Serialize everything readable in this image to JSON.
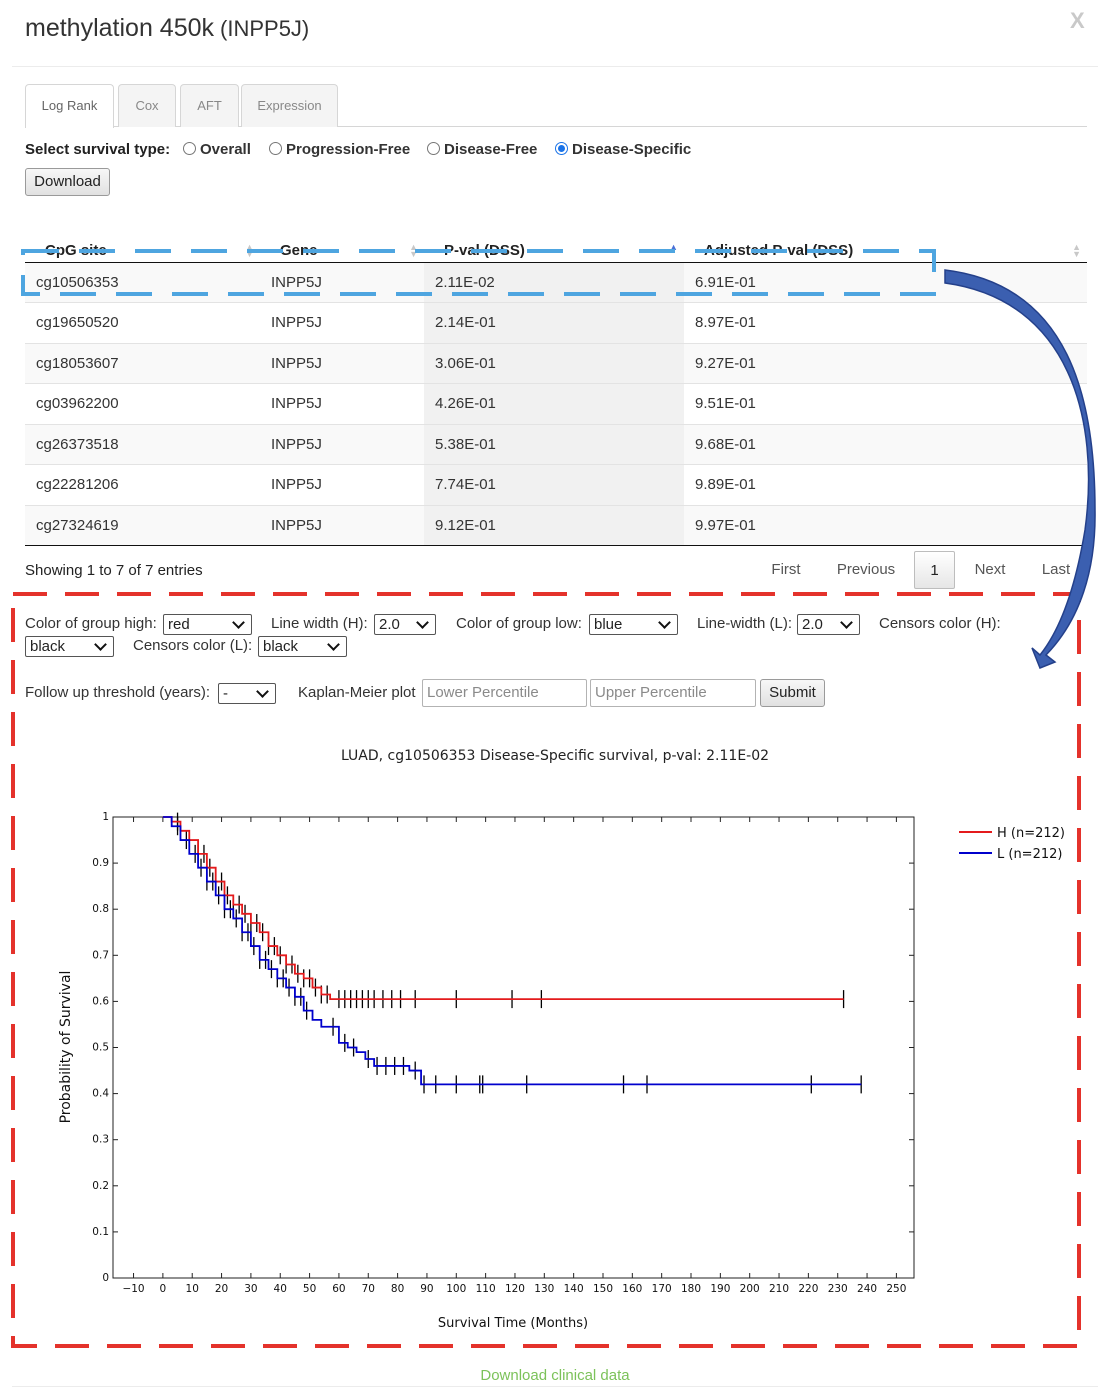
{
  "modal": {
    "title": "methylation 450k",
    "gene_label": "(INPP5J)",
    "close": "X"
  },
  "tabs": [
    {
      "label": "Log Rank",
      "active": true
    },
    {
      "label": "Cox",
      "active": false
    },
    {
      "label": "AFT",
      "active": false
    },
    {
      "label": "Expression",
      "active": false
    }
  ],
  "survival_type": {
    "label": "Select survival type:",
    "options": [
      "Overall",
      "Progression-Free",
      "Disease-Free",
      "Disease-Specific"
    ],
    "selected": "Disease-Specific"
  },
  "download_button": "Download",
  "table": {
    "columns": [
      "CpG site",
      "Gene",
      "P-val (DSS)",
      "Adjusted P-val (DSS)"
    ],
    "sorted_column": "P-val (DSS)",
    "rows": [
      [
        "cg10506353",
        "INPP5J",
        "2.11E-02",
        "6.91E-01"
      ],
      [
        "cg19650520",
        "INPP5J",
        "2.14E-01",
        "8.97E-01"
      ],
      [
        "cg18053607",
        "INPP5J",
        "3.06E-01",
        "9.27E-01"
      ],
      [
        "cg03962200",
        "INPP5J",
        "4.26E-01",
        "9.51E-01"
      ],
      [
        "cg26373518",
        "INPP5J",
        "5.38E-01",
        "9.68E-01"
      ],
      [
        "cg22281206",
        "INPP5J",
        "7.74E-01",
        "9.89E-01"
      ],
      [
        "cg27324619",
        "INPP5J",
        "9.12E-01",
        "9.97E-01"
      ]
    ],
    "info": "Showing 1 to 7 of 7 entries",
    "pagination": {
      "first": "First",
      "previous": "Previous",
      "page": "1",
      "next": "Next",
      "last": "Last"
    }
  },
  "plot_controls": {
    "color_high_label": "Color of group high:",
    "color_high": "red",
    "lw_h_label": "Line width (H):",
    "lw_h": "2.0",
    "color_low_label": "Color of group low:",
    "color_low": "blue",
    "lw_l_label": "Line-width (L):",
    "lw_l": "2.0",
    "censor_h_label": "Censors color (H):",
    "censor_h": "black",
    "censor_l_label": "Censors color (L):",
    "censor_l": "black",
    "followup_label": "Follow up threshold (years):",
    "followup": "-",
    "km_label": "Kaplan-Meier plot",
    "lower_placeholder": "Lower Percentile",
    "upper_placeholder": "Upper Percentile",
    "submit": "Submit"
  },
  "chart_data": {
    "type": "line",
    "title": "LUAD, cg10506353 Disease-Specific survival, p-val: 2.11E-02",
    "xlabel": "Survival Time (Months)",
    "ylabel": "Probability of Survival",
    "xlim": [
      -17,
      256
    ],
    "ylim": [
      0,
      1
    ],
    "xticks": [
      -10,
      0,
      10,
      20,
      30,
      40,
      50,
      60,
      70,
      80,
      90,
      100,
      110,
      120,
      130,
      140,
      150,
      160,
      170,
      180,
      190,
      200,
      210,
      220,
      230,
      240,
      250
    ],
    "yticks": [
      0,
      0.1,
      0.2,
      0.3,
      0.4,
      0.5,
      0.6,
      0.7,
      0.8,
      0.9,
      1
    ],
    "legend_position": "top-right",
    "series": [
      {
        "name": "H (n=212)",
        "color": "#e41a1c",
        "x": [
          0,
          3,
          6,
          9,
          12,
          15,
          18,
          21,
          24,
          27,
          30,
          33,
          36,
          39,
          42,
          45,
          48,
          51,
          54,
          57,
          232
        ],
        "y": [
          1.0,
          0.99,
          0.97,
          0.95,
          0.92,
          0.89,
          0.86,
          0.83,
          0.81,
          0.79,
          0.77,
          0.75,
          0.72,
          0.7,
          0.68,
          0.66,
          0.65,
          0.63,
          0.615,
          0.605,
          0.605
        ],
        "censors": [
          5,
          9,
          12,
          14,
          16,
          18,
          20,
          22,
          24,
          26,
          28,
          30,
          32,
          34,
          36,
          38,
          40,
          42,
          44,
          46,
          48,
          50,
          52,
          54,
          56,
          60,
          62,
          64,
          66,
          68,
          70,
          72,
          75,
          78,
          81,
          86,
          100,
          119,
          129,
          232
        ]
      },
      {
        "name": "L (n=212)",
        "color": "#0000cc",
        "x": [
          0,
          3,
          6,
          9,
          12,
          15,
          18,
          21,
          24,
          27,
          30,
          33,
          36,
          39,
          42,
          45,
          48,
          51,
          54,
          57,
          60,
          63,
          66,
          69,
          72,
          75,
          80,
          84,
          88,
          238
        ],
        "y": [
          1.0,
          0.98,
          0.95,
          0.92,
          0.89,
          0.86,
          0.83,
          0.8,
          0.78,
          0.75,
          0.72,
          0.69,
          0.67,
          0.65,
          0.63,
          0.61,
          0.58,
          0.56,
          0.545,
          0.545,
          0.51,
          0.5,
          0.49,
          0.475,
          0.46,
          0.46,
          0.46,
          0.45,
          0.42,
          0.42
        ],
        "censors": [
          5,
          8,
          11,
          13,
          15,
          17,
          19,
          21,
          23,
          25,
          27,
          29,
          31,
          33,
          35,
          37,
          39,
          41,
          43,
          45,
          47,
          49,
          58,
          62,
          65,
          70,
          73,
          76,
          79,
          82,
          86,
          89,
          93,
          100,
          108,
          109,
          124,
          157,
          165,
          221,
          238
        ]
      }
    ]
  }
}
